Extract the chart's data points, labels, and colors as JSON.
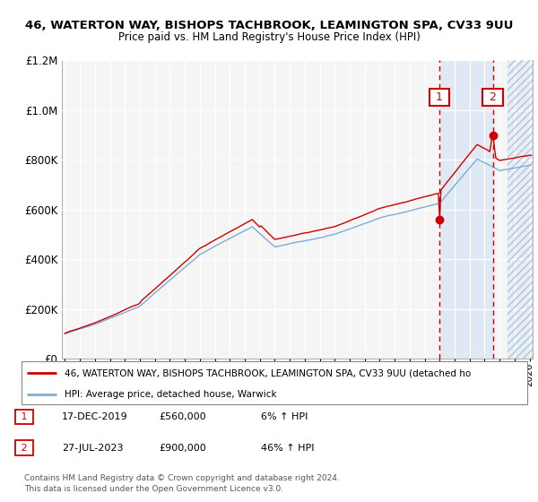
{
  "title1": "46, WATERTON WAY, BISHOPS TACHBROOK, LEAMINGTON SPA, CV33 9UU",
  "title2": "Price paid vs. HM Land Registry's House Price Index (HPI)",
  "legend_line1": "46, WATERTON WAY, BISHOPS TACHBROOK, LEAMINGTON SPA, CV33 9UU (detached ho",
  "legend_line2": "HPI: Average price, detached house, Warwick",
  "annotation1": {
    "label": "1",
    "date": "17-DEC-2019",
    "price": "£560,000",
    "change": "6% ↑ HPI"
  },
  "annotation2": {
    "label": "2",
    "date": "27-JUL-2023",
    "price": "£900,000",
    "change": "46% ↑ HPI"
  },
  "footer": "Contains HM Land Registry data © Crown copyright and database right 2024.\nThis data is licensed under the Open Government Licence v3.0.",
  "hpi_color": "#7dadd4",
  "price_color": "#cc0000",
  "annotation_color": "#cc0000",
  "background_color": "#ffffff",
  "ylim": [
    0,
    1200000
  ],
  "xlim_start": 1994.8,
  "xlim_end": 2026.2,
  "sale1_x": 2019.96,
  "sale1_y": 560000,
  "sale2_x": 2023.54,
  "sale2_y": 900000,
  "future_start": 2024.5,
  "hatch_start": 2024.5
}
